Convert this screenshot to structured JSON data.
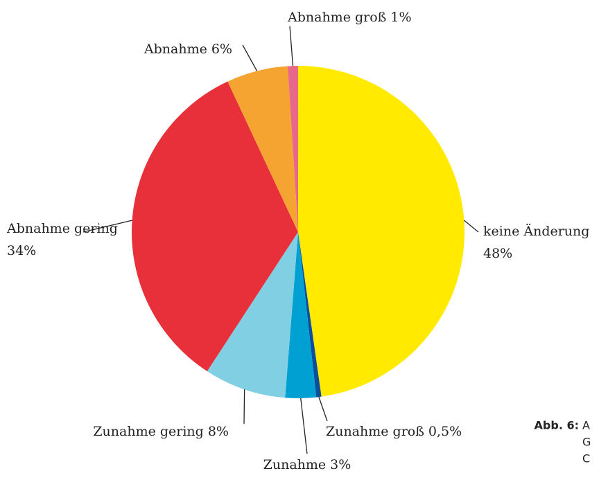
{
  "chart_data": {
    "type": "pie",
    "categories": [
      "keine Änderung",
      "Zunahme groß",
      "Zunahme",
      "Zunahme gering",
      "Abnahme gering",
      "Abnahme",
      "Abnahme groß"
    ],
    "values": [
      48,
      0.5,
      3,
      8,
      34,
      6,
      1
    ],
    "value_labels": [
      "48%",
      "0,5%",
      "3%",
      "8%",
      "34%",
      "6%",
      "1%"
    ],
    "colors": [
      "#ffea00",
      "#0b4f9c",
      "#00a0d2",
      "#80cfe3",
      "#e8303a",
      "#f5a431",
      "#e8688a"
    ]
  },
  "caption": {
    "label": "Abb. 6:",
    "lines": [
      "A",
      "G",
      "C"
    ]
  }
}
